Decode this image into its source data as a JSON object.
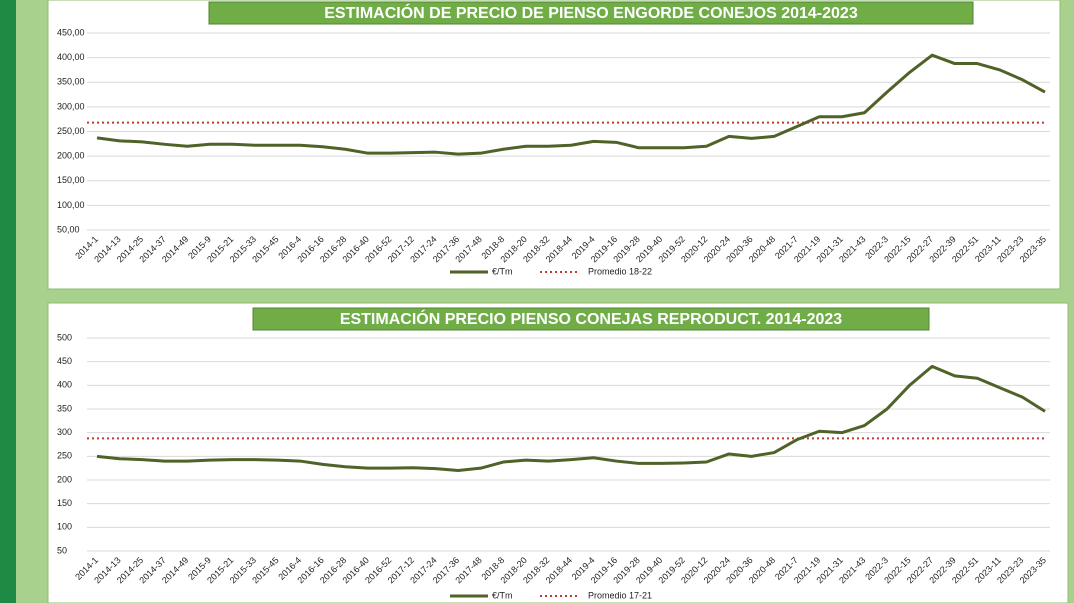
{
  "chart_data": [
    {
      "type": "line",
      "title": "ESTIMACIÓN DE PRECIO DE PIENSO ENGORDE CONEJOS 2014-2023",
      "categories": [
        "2014-1",
        "2014-13",
        "2014-25",
        "2014-37",
        "2014-49",
        "2015-9",
        "2015-21",
        "2015-33",
        "2015-45",
        "2016-4",
        "2016-16",
        "2016-28",
        "2016-40",
        "2016-52",
        "2017-12",
        "2017-24",
        "2017-36",
        "2017-48",
        "2018-8",
        "2018-20",
        "2018-32",
        "2018-44",
        "2019-4",
        "2019-16",
        "2019-28",
        "2019-40",
        "2019-52",
        "2020-12",
        "2020-24",
        "2020-36",
        "2020-48",
        "2021-7",
        "2021-19",
        "2021-31",
        "2021-43",
        "2022-3",
        "2022-15",
        "2022-27",
        "2022-39",
        "2022-51",
        "2023-11",
        "2023-23",
        "2023-35"
      ],
      "series": [
        {
          "name": "€/Tm",
          "color": "#4f6228",
          "values": [
            237,
            231,
            229,
            224,
            220,
            224,
            224,
            222,
            222,
            222,
            219,
            214,
            206,
            206,
            207,
            208,
            204,
            206,
            214,
            220,
            220,
            222,
            230,
            228,
            217,
            217,
            217,
            220,
            240,
            236,
            240,
            260,
            280,
            280,
            288,
            330,
            370,
            405,
            388,
            388,
            375,
            355,
            330
          ]
        }
      ],
      "reference_line": {
        "name": "Promedio 18-22",
        "value": 268,
        "color": "#c0392b"
      },
      "ylim": [
        50,
        450
      ],
      "yticks": [
        {
          "value": 50,
          "label": "50,00"
        },
        {
          "value": 100,
          "label": "100,00"
        },
        {
          "value": 150,
          "label": "150,00"
        },
        {
          "value": 200,
          "label": "200,00"
        },
        {
          "value": 250,
          "label": "250,00"
        },
        {
          "value": 300,
          "label": "300,00"
        },
        {
          "value": 350,
          "label": "350,00"
        },
        {
          "value": 400,
          "label": "400,00"
        },
        {
          "value": 450,
          "label": "450,00"
        }
      ],
      "grid": true
    },
    {
      "type": "line",
      "title": "ESTIMACIÓN PRECIO PIENSO CONEJAS REPRODUCT. 2014-2023",
      "categories": [
        "2014-1",
        "2014-13",
        "2014-25",
        "2014-37",
        "2014-49",
        "2015-9",
        "2015-21",
        "2015-33",
        "2015-45",
        "2016-4",
        "2016-16",
        "2016-28",
        "2016-40",
        "2016-52",
        "2017-12",
        "2017-24",
        "2017-36",
        "2017-48",
        "2018-8",
        "2018-20",
        "2018-32",
        "2018-44",
        "2019-4",
        "2019-16",
        "2019-28",
        "2019-40",
        "2019-52",
        "2020-12",
        "2020-24",
        "2020-36",
        "2020-48",
        "2021-7",
        "2021-19",
        "2021-31",
        "2021-43",
        "2022-3",
        "2022-15",
        "2022-27",
        "2022-39",
        "2022-51",
        "2023-11",
        "2023-23",
        "2023-35"
      ],
      "series": [
        {
          "name": "€/Tm",
          "color": "#4f6228",
          "values": [
            250,
            245,
            243,
            240,
            240,
            242,
            243,
            243,
            242,
            240,
            233,
            228,
            225,
            225,
            226,
            224,
            220,
            225,
            238,
            242,
            240,
            243,
            247,
            240,
            235,
            235,
            236,
            238,
            255,
            250,
            258,
            285,
            303,
            300,
            315,
            350,
            400,
            440,
            420,
            415,
            395,
            375,
            345
          ]
        }
      ],
      "reference_line": {
        "name": "Promedio 17-21",
        "value": 288,
        "color": "#c0392b"
      },
      "ylim": [
        50,
        500
      ],
      "yticks": [
        50,
        100,
        150,
        200,
        250,
        300,
        350,
        400,
        450,
        500
      ],
      "grid": true
    }
  ]
}
